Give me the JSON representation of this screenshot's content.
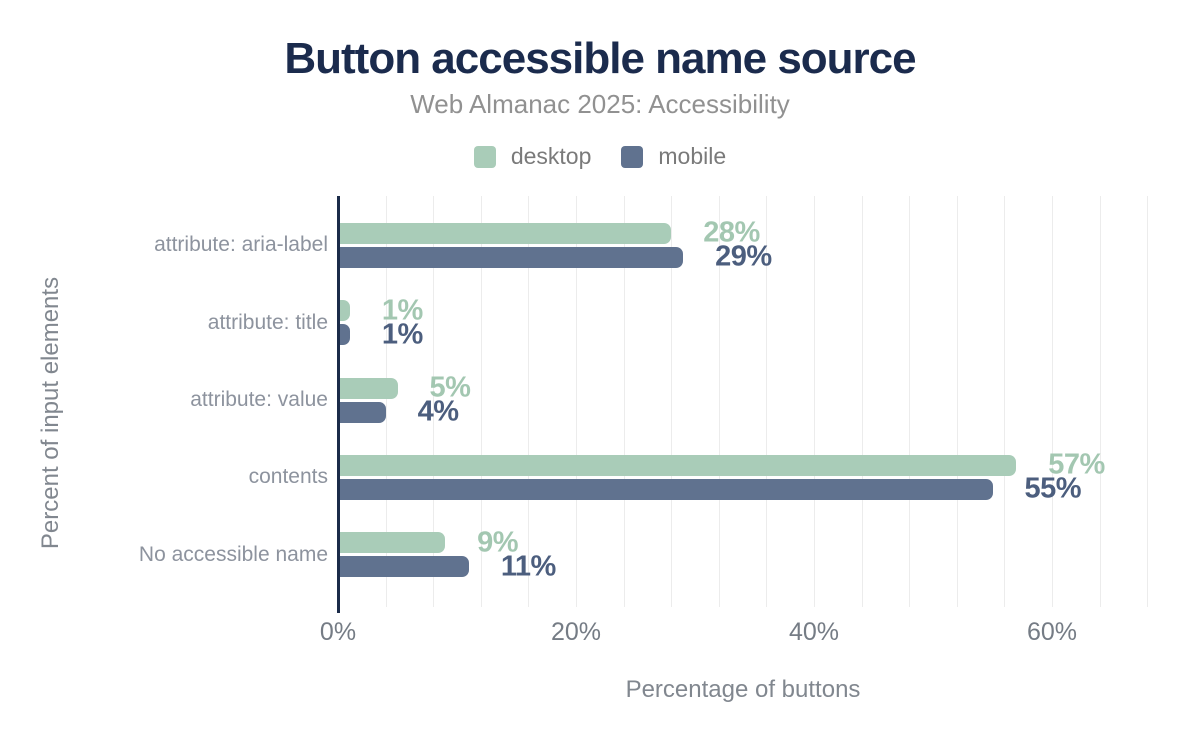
{
  "header": {
    "title": "Button accessible name source",
    "subtitle": "Web Almanac 2025: Accessibility"
  },
  "colors": {
    "title": "#1b2b4d",
    "subtitle": "#919191",
    "axis_line": "#1b2b49",
    "gridline": "#ececec",
    "category_label": "#8d939e",
    "tick_label": "#757c85",
    "axis_title": "#81878f"
  },
  "chart_data": {
    "type": "bar",
    "orientation": "horizontal",
    "title": "Button accessible name source",
    "subtitle": "Web Almanac 2025: Accessibility",
    "categories": [
      "attribute: aria-label",
      "attribute: title",
      "attribute: value",
      "contents",
      "No accessible name"
    ],
    "series": [
      {
        "name": "desktop",
        "color": "#a9ccb8",
        "label_color": "#a3c7b1",
        "values": [
          28,
          1,
          5,
          57,
          9
        ]
      },
      {
        "name": "mobile",
        "color": "#60728f",
        "label_color": "#4c5e7e",
        "values": [
          29,
          1,
          4,
          55,
          11
        ]
      }
    ],
    "xlabel": "Percentage of buttons",
    "ylabel": "Percent of input elements",
    "xlim": [
      0,
      68
    ],
    "x_ticks": [
      {
        "value": 0,
        "label": "0%"
      },
      {
        "value": 20,
        "label": "20%"
      },
      {
        "value": 40,
        "label": "40%"
      },
      {
        "value": 60,
        "label": "60%"
      }
    ],
    "grid_interval": 4,
    "value_suffix": "%",
    "legend_position": "top",
    "grid": true
  }
}
